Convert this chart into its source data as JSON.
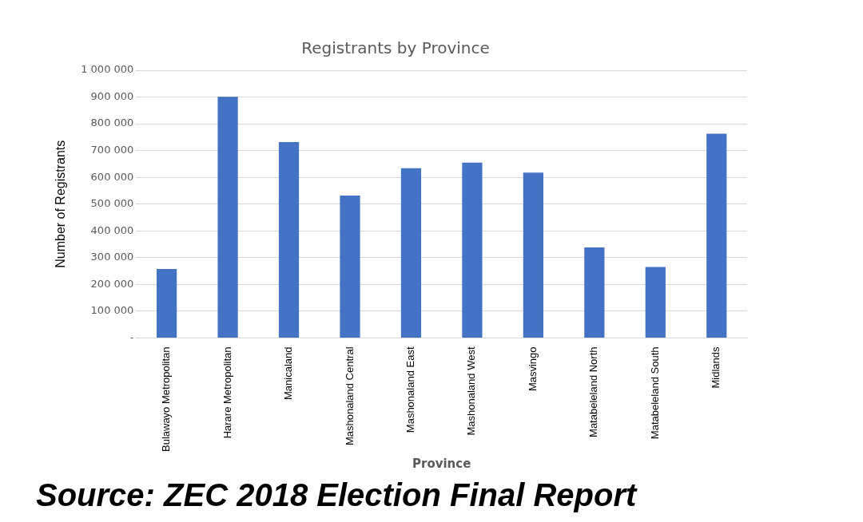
{
  "chart_data": {
    "type": "bar",
    "title": "Registrants by Province",
    "xlabel": "Province",
    "ylabel": "Number of Registrants",
    "categories": [
      "Bulawayo Metropolitan",
      "Harare Metropolitan",
      "Manicaland",
      "Mashonaland Central",
      "Mashonaland East",
      "Mashonaland West",
      "Masvingo",
      "Matabeleland North",
      "Matabeleland South",
      "Midlands"
    ],
    "values": [
      258000,
      901000,
      732000,
      532000,
      634000,
      655000,
      618000,
      338000,
      265000,
      763000
    ],
    "color": "#4472c4",
    "ylim": [
      0,
      1000000
    ],
    "yticks": [
      {
        "value": 0,
        "label": "-"
      },
      {
        "value": 100000,
        "label": "100 000"
      },
      {
        "value": 200000,
        "label": "200 000"
      },
      {
        "value": 300000,
        "label": "300 000"
      },
      {
        "value": 400000,
        "label": "400 000"
      },
      {
        "value": 500000,
        "label": "500 000"
      },
      {
        "value": 600000,
        "label": "600 000"
      },
      {
        "value": 700000,
        "label": "700 000"
      },
      {
        "value": 800000,
        "label": "800 000"
      },
      {
        "value": 900000,
        "label": "900 000"
      },
      {
        "value": 1000000,
        "label": "1 000 000"
      }
    ],
    "grid": "y",
    "legend": false,
    "annotations": [
      "Source: ZEC 2018 Election Final Report"
    ]
  }
}
